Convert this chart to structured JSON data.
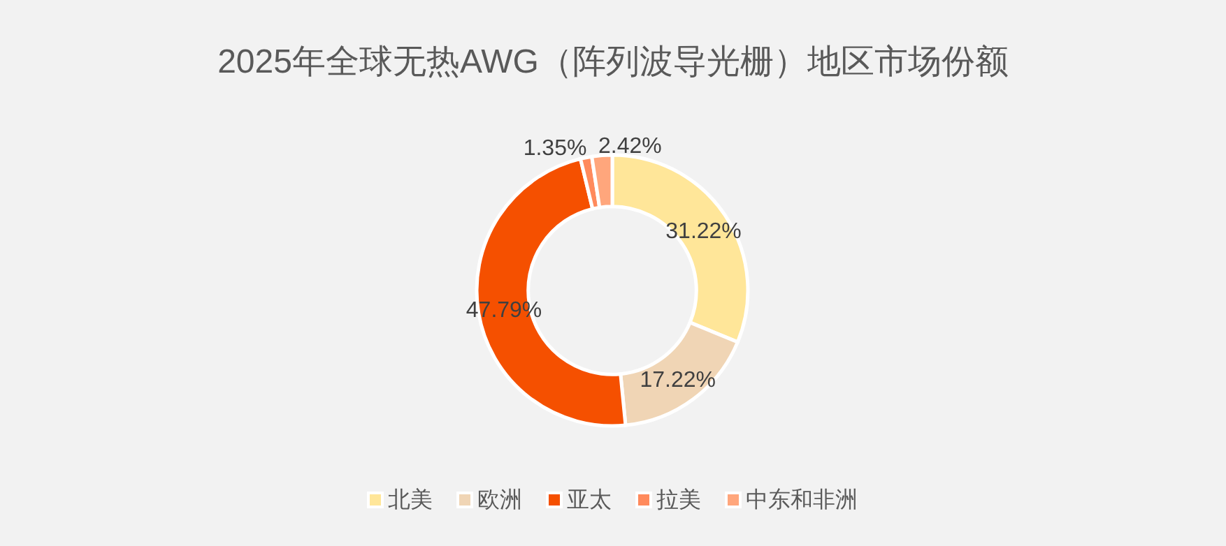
{
  "chart_data": {
    "type": "donut",
    "title": "2025年全球无热AWG（阵列波导光栅）地区市场份额",
    "categories": [
      "北美",
      "欧洲",
      "亚太",
      "拉美",
      "中东和非洲"
    ],
    "values": [
      31.22,
      17.22,
      47.79,
      1.35,
      2.42
    ],
    "colors": [
      "#ffe699",
      "#f0d5b5",
      "#f55000",
      "#ff8a5c",
      "#ffa67c"
    ],
    "value_labels": [
      "31.22%",
      "17.22%",
      "47.79%",
      "1.35%",
      "2.42%"
    ],
    "legend": "bottom"
  }
}
